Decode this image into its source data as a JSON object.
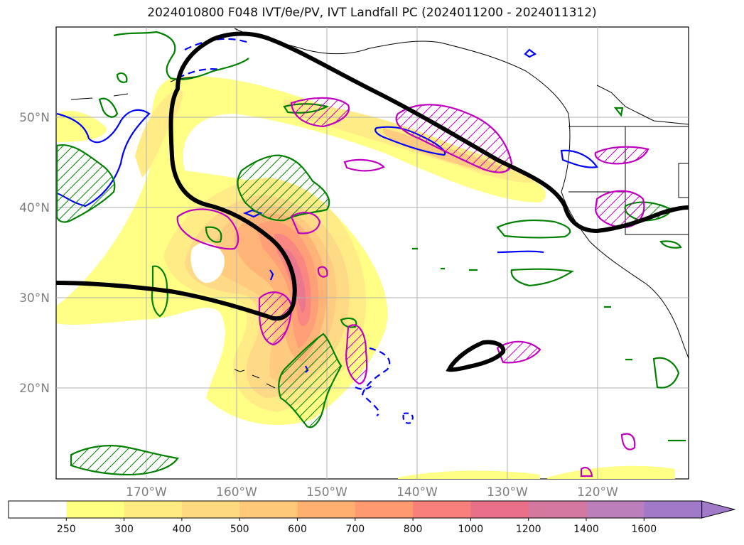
{
  "title": {
    "text": "2024010800 F048 IVT/θe/PV, IVT Landfall PC (2024011200 - 2024011312)"
  },
  "map": {
    "lat_labels": [
      "50°N",
      "40°N",
      "30°N",
      "20°N"
    ],
    "lon_labels": [
      "170°W",
      "160°W",
      "150°W",
      "140°W",
      "130°W",
      "120°W"
    ]
  },
  "colorbar": {
    "tick_labels": [
      "250",
      "300",
      "400",
      "500",
      "600",
      "700",
      "800",
      "1000",
      "1200",
      "1400",
      "1600"
    ],
    "colors": [
      "#ffffff",
      "#ffff80",
      "#ffeb80",
      "#ffd980",
      "#ffc97a",
      "#ffb070",
      "#ff9a70",
      "#f9807a",
      "#e97088",
      "#d478a0",
      "#bb80bb",
      "#a07ac8"
    ],
    "extend": "max"
  },
  "contour_colors": {
    "ivt_landfall_pc": "#000000",
    "theta_e": "#0000ff",
    "pv_positive": "#008000",
    "pv_negative": "#c000c0"
  }
}
